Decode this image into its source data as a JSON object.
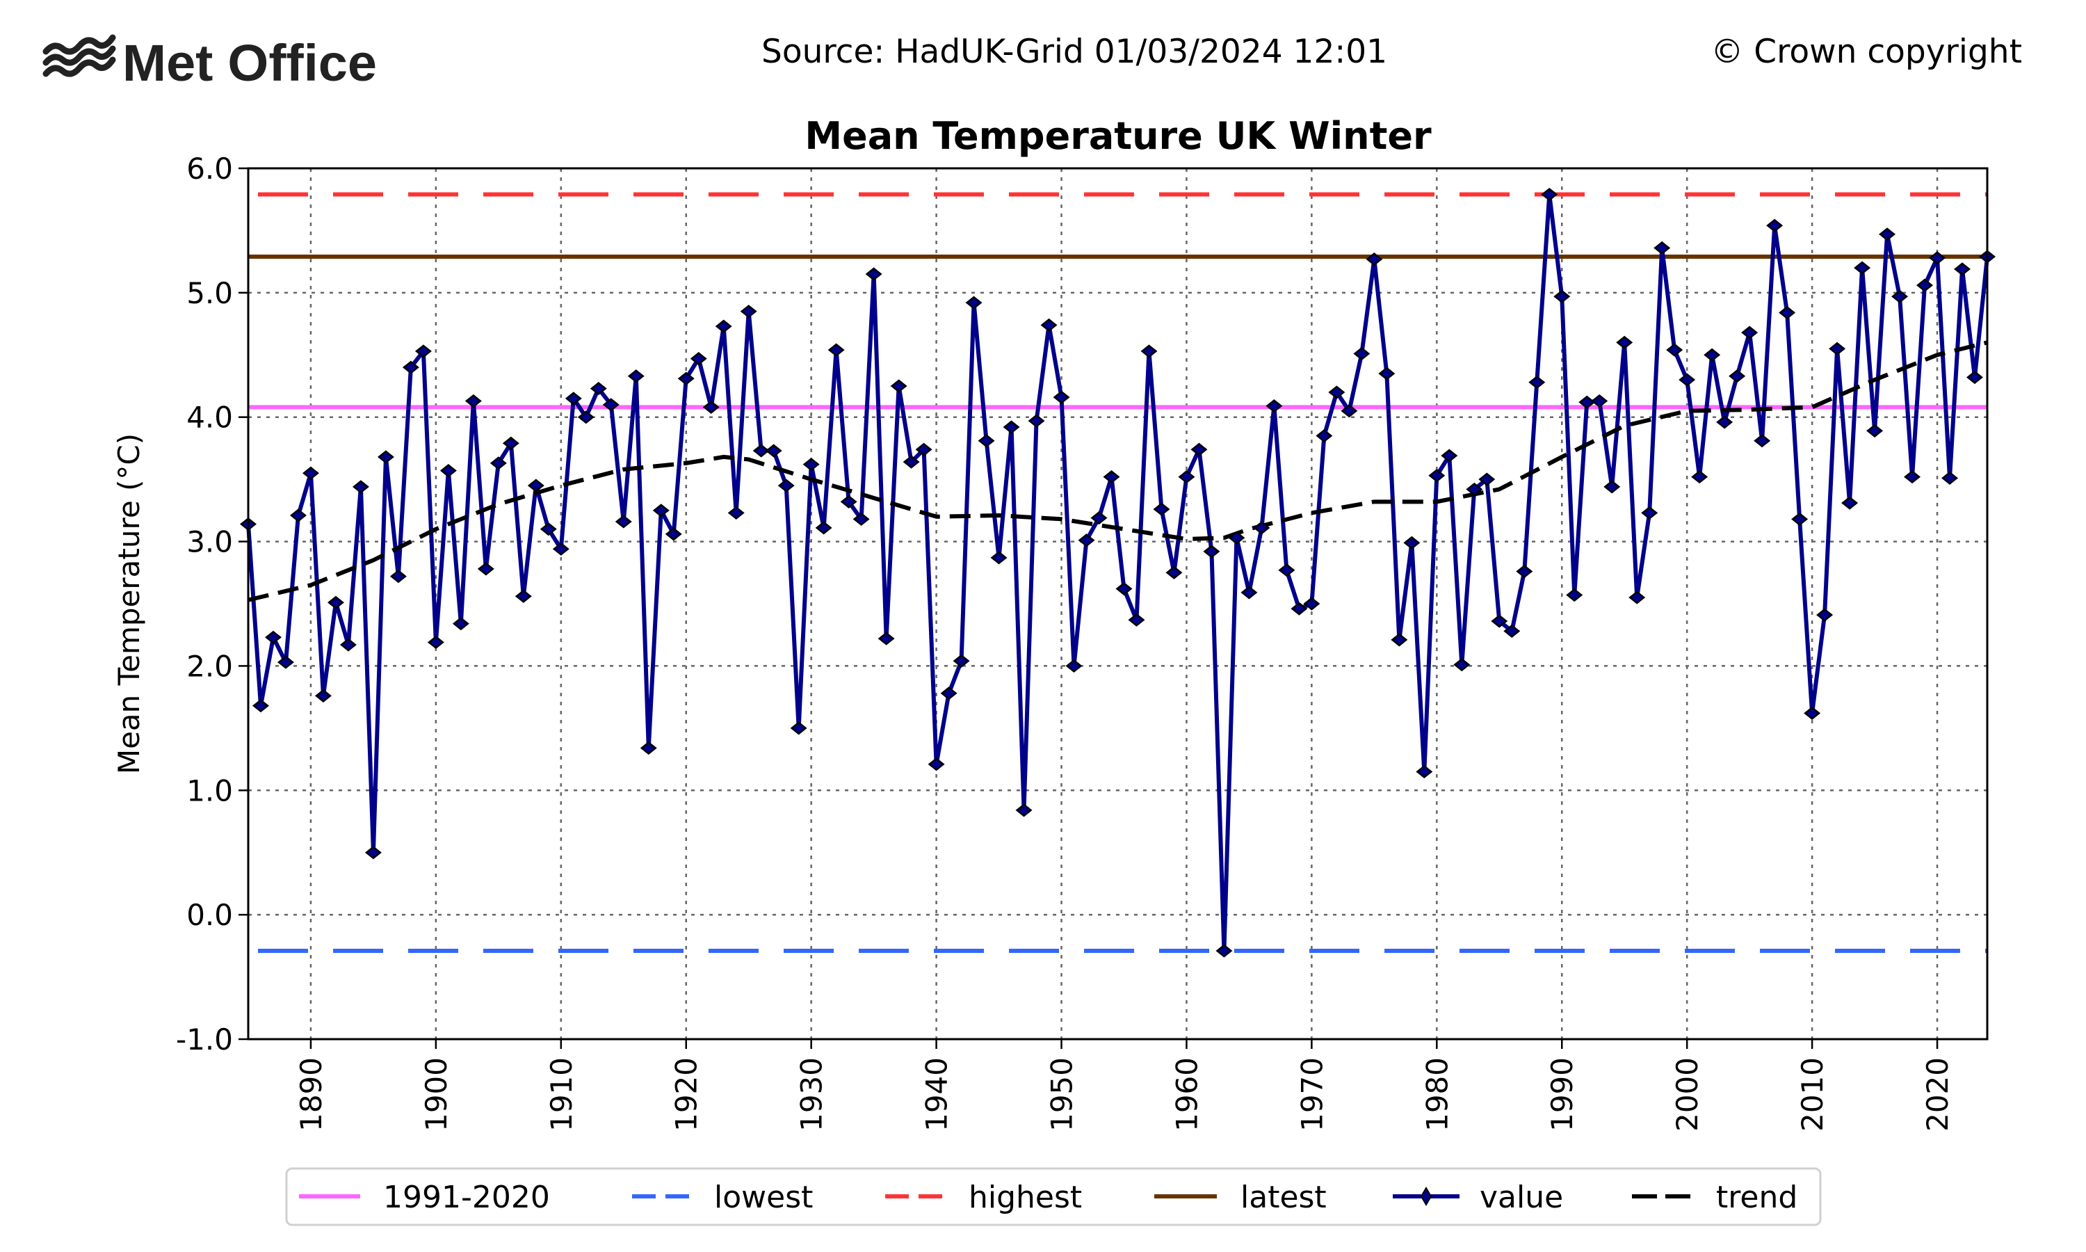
{
  "header": {
    "logo_text": "Met Office",
    "source": "Source: HadUK-Grid 01/03/2024 12:01",
    "copyright": "© Crown copyright"
  },
  "chart_data": {
    "type": "line",
    "title": "Mean Temperature UK Winter",
    "xlabel": "",
    "ylabel": "Mean Temperature (°C)",
    "xlim": [
      1885,
      2024
    ],
    "ylim": [
      -1.0,
      6.0
    ],
    "grid": true,
    "legend_placement": "bottom-center",
    "x_ticks": [
      1890,
      1900,
      1910,
      1920,
      1930,
      1940,
      1950,
      1960,
      1970,
      1980,
      1990,
      2000,
      2010,
      2020
    ],
    "y_ticks": [
      "6.0",
      "5.0",
      "4.0",
      "3.0",
      "2.0",
      "1.0",
      "0.0",
      "-1.0"
    ],
    "reference_lines": [
      {
        "name": "1991-2020",
        "value": 4.08,
        "color": "#ff66ff",
        "style": "solid"
      },
      {
        "name": "lowest",
        "value": -0.29,
        "color": "#3366ff",
        "style": "dashed"
      },
      {
        "name": "highest",
        "value": 5.79,
        "color": "#ff3333",
        "style": "dashed"
      },
      {
        "name": "latest",
        "value": 5.29,
        "color": "#663300",
        "style": "solid"
      }
    ],
    "series": [
      {
        "name": "value",
        "color": "#00008b",
        "marker": "diamond",
        "x": [
          1885,
          1886,
          1887,
          1888,
          1889,
          1890,
          1891,
          1892,
          1893,
          1894,
          1895,
          1896,
          1897,
          1898,
          1899,
          1900,
          1901,
          1902,
          1903,
          1904,
          1905,
          1906,
          1907,
          1908,
          1909,
          1910,
          1911,
          1912,
          1913,
          1914,
          1915,
          1916,
          1917,
          1918,
          1919,
          1920,
          1921,
          1922,
          1923,
          1924,
          1925,
          1926,
          1927,
          1928,
          1929,
          1930,
          1931,
          1932,
          1933,
          1934,
          1935,
          1936,
          1937,
          1938,
          1939,
          1940,
          1941,
          1942,
          1943,
          1944,
          1945,
          1946,
          1947,
          1948,
          1949,
          1950,
          1951,
          1952,
          1953,
          1954,
          1955,
          1956,
          1957,
          1958,
          1959,
          1960,
          1961,
          1962,
          1963,
          1964,
          1965,
          1966,
          1967,
          1968,
          1969,
          1970,
          1971,
          1972,
          1973,
          1974,
          1975,
          1976,
          1977,
          1978,
          1979,
          1980,
          1981,
          1982,
          1983,
          1984,
          1985,
          1986,
          1987,
          1988,
          1989,
          1990,
          1991,
          1992,
          1993,
          1994,
          1995,
          1996,
          1997,
          1998,
          1999,
          2000,
          2001,
          2002,
          2003,
          2004,
          2005,
          2006,
          2007,
          2008,
          2009,
          2010,
          2011,
          2012,
          2013,
          2014,
          2015,
          2016,
          2017,
          2018,
          2019,
          2020,
          2021,
          2022,
          2023,
          2024
        ],
        "y": [
          3.14,
          1.68,
          2.23,
          2.03,
          3.21,
          3.55,
          1.76,
          2.51,
          2.17,
          3.44,
          0.5,
          3.68,
          2.72,
          4.4,
          4.53,
          2.19,
          3.57,
          2.34,
          4.13,
          2.78,
          3.63,
          3.79,
          2.56,
          3.45,
          3.1,
          2.94,
          4.15,
          4.0,
          4.23,
          4.1,
          3.16,
          4.33,
          1.34,
          3.25,
          3.06,
          4.31,
          4.47,
          4.08,
          4.73,
          3.23,
          4.85,
          3.73,
          3.73,
          3.45,
          1.5,
          3.62,
          3.11,
          4.54,
          3.32,
          3.18,
          5.15,
          2.22,
          4.25,
          3.64,
          3.74,
          1.21,
          1.78,
          2.04,
          4.92,
          3.81,
          2.87,
          3.92,
          0.84,
          3.97,
          4.74,
          4.16,
          2.0,
          3.01,
          3.19,
          3.52,
          2.62,
          2.37,
          4.53,
          3.26,
          2.75,
          3.52,
          3.74,
          2.92,
          -0.29,
          3.03,
          2.59,
          3.11,
          4.09,
          2.77,
          2.46,
          2.5,
          3.85,
          4.2,
          4.05,
          4.51,
          5.27,
          4.35,
          2.21,
          2.99,
          1.15,
          3.53,
          3.69,
          2.01,
          3.42,
          3.5,
          2.36,
          2.28,
          2.76,
          4.28,
          5.79,
          4.97,
          2.57,
          4.12,
          4.13,
          3.44,
          4.6,
          2.55,
          3.23,
          5.36,
          4.54,
          4.3,
          3.52,
          4.5,
          3.96,
          4.33,
          4.68,
          3.81,
          5.54,
          4.84,
          3.18,
          1.62,
          2.41,
          4.55,
          3.31,
          5.2,
          3.89,
          5.47,
          4.97,
          3.52,
          5.06,
          5.28,
          3.51,
          5.19,
          4.32,
          5.29
        ]
      },
      {
        "name": "trend",
        "color": "#000000",
        "style": "dashed",
        "x": [
          1885,
          1890,
          1895,
          1900,
          1905,
          1910,
          1915,
          1920,
          1923,
          1925,
          1930,
          1935,
          1940,
          1945,
          1950,
          1955,
          1960,
          1963,
          1965,
          1970,
          1975,
          1980,
          1985,
          1990,
          1995,
          2000,
          2005,
          2010,
          2015,
          2020,
          2024
        ],
        "y": [
          2.53,
          2.65,
          2.85,
          3.1,
          3.3,
          3.45,
          3.58,
          3.63,
          3.68,
          3.66,
          3.5,
          3.35,
          3.2,
          3.21,
          3.18,
          3.1,
          3.02,
          3.03,
          3.1,
          3.23,
          3.32,
          3.32,
          3.42,
          3.68,
          3.93,
          4.05,
          4.06,
          4.08,
          4.3,
          4.5,
          4.6
        ]
      }
    ]
  }
}
